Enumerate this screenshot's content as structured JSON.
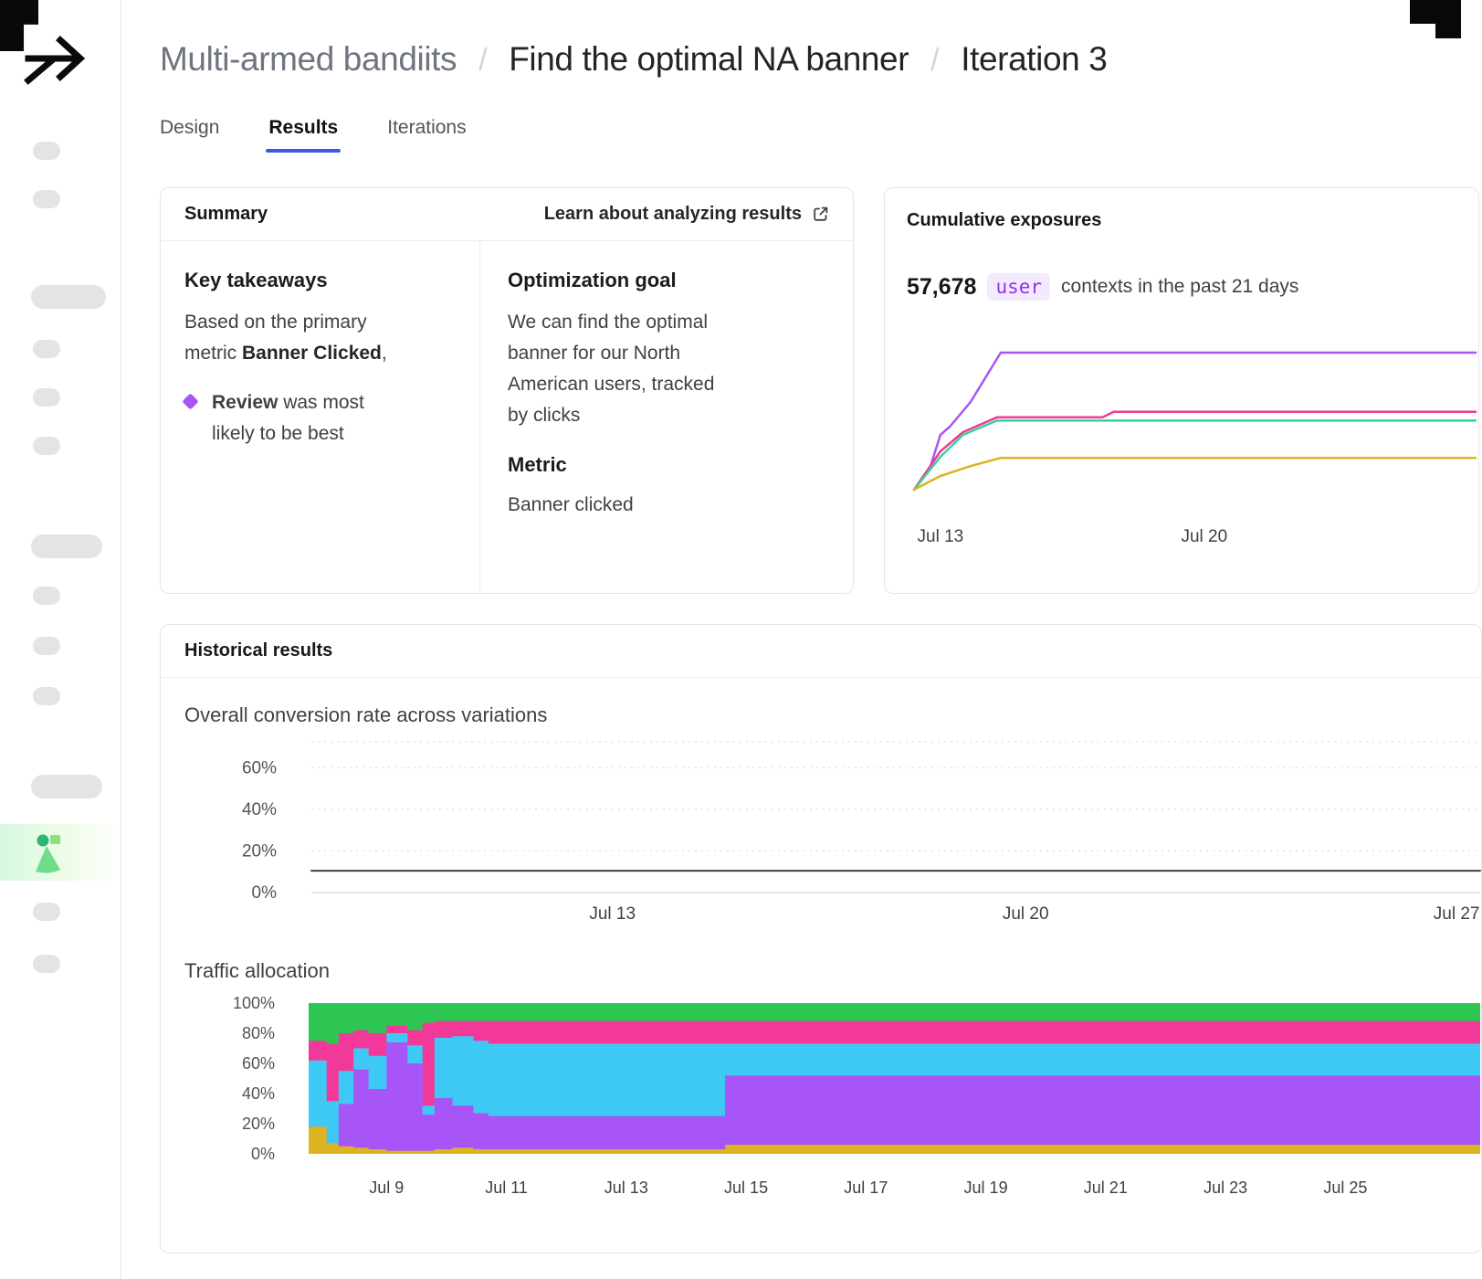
{
  "colors": {
    "accent_blue": "#4353f0",
    "purple": "#a855f7",
    "pink": "#f2399a",
    "green": "#2dc653",
    "green_line": "#34d399",
    "cyan": "#3ec9f5",
    "yellow": "#ddb321",
    "code_purple": "#9333ea",
    "code_bg": "#f4eafe"
  },
  "header": {
    "breadcrumb": [
      "Multi-armed bandiits",
      "Find the optimal NA banner",
      "Iteration 3"
    ],
    "separator": "/"
  },
  "tabs": [
    {
      "label": "Design",
      "active": false
    },
    {
      "label": "Results",
      "active": true
    },
    {
      "label": "Iterations",
      "active": false
    }
  ],
  "summary_card": {
    "title": "Summary",
    "learn_link": "Learn about analyzing results",
    "key_takeaways": {
      "heading": "Key takeaways",
      "text_before": "Based on the primary metric ",
      "metric_bold": "Banner Clicked",
      "text_after": ",",
      "bullet_bold": "Review",
      "bullet_rest": " was most likely to be best"
    },
    "optimization": {
      "heading": "Optimization goal",
      "text": "We can find the optimal banner for our North American users, tracked by clicks",
      "metric_heading": "Metric",
      "metric_value": "Banner clicked"
    }
  },
  "exposures_card": {
    "title": "Cumulative exposures",
    "count": "57,678",
    "unit": "user",
    "suffix": "contexts in the past 21 days"
  },
  "historical_card": {
    "title": "Historical results",
    "conversion_title": "Overall conversion rate across variations",
    "traffic_title": "Traffic allocation"
  },
  "chart_data": [
    {
      "id": "exposures",
      "type": "line",
      "title": "Cumulative exposures",
      "x_unit": "date in July",
      "y_unit": "cumulative user contexts (estimated, total 57,678 over 21 days)",
      "x_domain": [
        12.3,
        27.2
      ],
      "y_domain": [
        0,
        26500
      ],
      "x_ticks": [
        {
          "x": 13,
          "label": "Jul 13"
        },
        {
          "x": 20,
          "label": "Jul 20"
        }
      ],
      "series": [
        {
          "name": "variation-purple",
          "color": "#a855f7",
          "points": [
            [
              12.3,
              0
            ],
            [
              12.7,
              3500
            ],
            [
              13.0,
              10000
            ],
            [
              13.25,
              11500
            ],
            [
              13.8,
              16000
            ],
            [
              14.6,
              25000
            ],
            [
              27.2,
              25000
            ]
          ]
        },
        {
          "name": "variation-pink",
          "color": "#f2399a",
          "points": [
            [
              12.3,
              0
            ],
            [
              13.0,
              7000
            ],
            [
              13.6,
              10500
            ],
            [
              14.5,
              13200
            ],
            [
              17.3,
              13200
            ],
            [
              17.6,
              14200
            ],
            [
              27.2,
              14200
            ]
          ]
        },
        {
          "name": "variation-green",
          "color": "#34d399",
          "points": [
            [
              12.3,
              0
            ],
            [
              13.0,
              6000
            ],
            [
              13.6,
              10000
            ],
            [
              14.5,
              12600
            ],
            [
              27.2,
              12600
            ]
          ]
        },
        {
          "name": "variation-yellow",
          "color": "#ddb321",
          "points": [
            [
              12.3,
              0
            ],
            [
              13.0,
              2500
            ],
            [
              13.8,
              4300
            ],
            [
              14.6,
              5800
            ],
            [
              27.2,
              5800
            ]
          ]
        }
      ]
    },
    {
      "id": "conversion",
      "type": "line",
      "title": "Overall conversion rate across variations",
      "x_unit": "date in July",
      "y_unit": "conversion rate %",
      "x_domain": [
        7.9,
        27.7
      ],
      "y_domain": [
        0,
        72.4
      ],
      "grid": [
        {
          "v": 0,
          "solid": true
        },
        {
          "v": 20
        },
        {
          "v": 40
        },
        {
          "v": 60
        },
        {
          "v": 72.4
        }
      ],
      "y_ticks": [
        {
          "v": 0,
          "label": "0%"
        },
        {
          "v": 20,
          "label": "20%"
        },
        {
          "v": 40,
          "label": "40%"
        },
        {
          "v": 60,
          "label": "60%"
        }
      ],
      "x_ticks": [
        {
          "x": 13,
          "label": "Jul 13"
        },
        {
          "x": 20,
          "label": "Jul 20"
        },
        {
          "x": 27.3,
          "label": "Jul 27"
        }
      ],
      "series": [
        {
          "name": "overall-conversion-rate",
          "color": "#3f3f46",
          "points": [
            [
              7.9,
              10.5
            ],
            [
              27.7,
              10.5
            ]
          ]
        }
      ]
    },
    {
      "id": "traffic",
      "type": "stacked_area",
      "title": "Traffic allocation",
      "x_unit": "date in July",
      "y_unit": "percent of traffic",
      "x_domain": [
        7.7,
        27.25
      ],
      "y_domain": [
        0,
        100
      ],
      "y_ticks": [
        {
          "v": 0,
          "label": "0%"
        },
        {
          "v": 20,
          "label": "20%"
        },
        {
          "v": 40,
          "label": "40%"
        },
        {
          "v": 60,
          "label": "60%"
        },
        {
          "v": 80,
          "label": "80%"
        },
        {
          "v": 100,
          "label": "100%"
        }
      ],
      "x_ticks": [
        {
          "x": 9,
          "label": "Jul 9"
        },
        {
          "x": 11,
          "label": "Jul 11"
        },
        {
          "x": 13,
          "label": "Jul 13"
        },
        {
          "x": 15,
          "label": "Jul 15"
        },
        {
          "x": 17,
          "label": "Jul 17"
        },
        {
          "x": 19,
          "label": "Jul 19"
        },
        {
          "x": 21,
          "label": "Jul 21"
        },
        {
          "x": 23,
          "label": "Jul 23"
        },
        {
          "x": 25,
          "label": "Jul 25"
        }
      ],
      "x": [
        7.7,
        8.0,
        8.2,
        8.45,
        8.7,
        9.0,
        9.35,
        9.6,
        9.8,
        10.1,
        10.45,
        10.7,
        11.0,
        14.65,
        27.25
      ],
      "series": [
        {
          "name": "variation-yellow",
          "color": "#ddb321",
          "values": [
            18,
            7,
            5,
            4,
            3,
            2,
            2,
            2,
            3,
            4,
            3,
            3,
            3,
            6,
            6
          ]
        },
        {
          "name": "variation-purple",
          "color": "#a855f7",
          "values": [
            0,
            0,
            28,
            52,
            40,
            72,
            58,
            24,
            34,
            28,
            24,
            22,
            22,
            46,
            46
          ]
        },
        {
          "name": "variation-cyan",
          "color": "#3ec9f5",
          "values": [
            44,
            28,
            22,
            14,
            22,
            6,
            12,
            6,
            40,
            46,
            48,
            48,
            48,
            21,
            21
          ]
        },
        {
          "name": "variation-pink",
          "color": "#f2399a",
          "values": [
            13,
            38,
            25,
            12,
            15,
            5,
            10,
            55,
            11,
            10,
            13,
            15,
            15,
            15,
            15
          ]
        },
        {
          "name": "variation-green",
          "color": "#2dc653",
          "values": [
            25,
            27,
            20,
            18,
            20,
            15,
            18,
            13,
            12,
            12,
            12,
            12,
            12,
            12,
            12
          ]
        }
      ]
    }
  ]
}
